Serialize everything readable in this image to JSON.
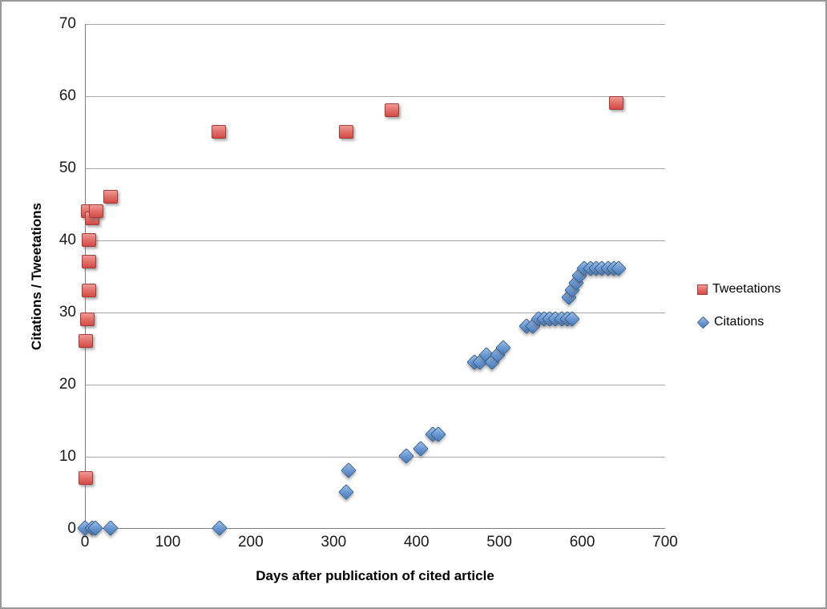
{
  "chart_data": {
    "type": "scatter",
    "title": "",
    "xlabel": "Days after publication of cited article",
    "ylabel": "Citations / Tweetations",
    "xlim": [
      0,
      700
    ],
    "ylim": [
      0,
      70
    ],
    "x_ticks": [
      0,
      100,
      200,
      300,
      400,
      500,
      600,
      700
    ],
    "y_ticks": [
      0,
      10,
      20,
      30,
      40,
      50,
      60,
      70
    ],
    "grid": "horizontal-only",
    "legend_position": "right",
    "series": [
      {
        "name": "Tweetations",
        "marker": "square",
        "color": "#d9534f",
        "border_color": "#a23a37",
        "points": [
          [
            1,
            7
          ],
          [
            1,
            26
          ],
          [
            3,
            29
          ],
          [
            5,
            33
          ],
          [
            5,
            37
          ],
          [
            5,
            40
          ],
          [
            4,
            44
          ],
          [
            9,
            43
          ],
          [
            14,
            44
          ],
          [
            31,
            46
          ],
          [
            161,
            55
          ],
          [
            315,
            55
          ],
          [
            370,
            58
          ],
          [
            641,
            59
          ]
        ]
      },
      {
        "name": "Citations",
        "marker": "diamond",
        "color": "#4f81bd",
        "border_color": "#35618f",
        "points": [
          [
            0,
            0
          ],
          [
            9,
            0
          ],
          [
            13,
            0
          ],
          [
            31,
            0
          ],
          [
            162,
            0
          ],
          [
            315,
            5
          ],
          [
            318,
            8
          ],
          [
            388,
            10
          ],
          [
            405,
            11
          ],
          [
            420,
            13
          ],
          [
            426,
            13
          ],
          [
            470,
            23
          ],
          [
            477,
            23
          ],
          [
            484,
            24
          ],
          [
            491,
            23
          ],
          [
            498,
            24
          ],
          [
            505,
            25
          ],
          [
            533,
            28
          ],
          [
            540,
            28
          ],
          [
            547,
            29
          ],
          [
            554,
            29
          ],
          [
            561,
            29
          ],
          [
            568,
            29
          ],
          [
            575,
            29
          ],
          [
            582,
            29
          ],
          [
            588,
            29
          ],
          [
            584,
            32
          ],
          [
            588,
            33
          ],
          [
            593,
            34
          ],
          [
            597,
            35
          ],
          [
            602,
            36
          ],
          [
            610,
            36
          ],
          [
            617,
            36
          ],
          [
            624,
            36
          ],
          [
            631,
            36
          ],
          [
            638,
            36
          ],
          [
            644,
            36
          ]
        ]
      }
    ]
  },
  "colors": {
    "gridline": "#a6a6a6",
    "axis_line": "#808080",
    "background": "#ffffff",
    "frame_border": "#999999",
    "tweetations_fill": "#d9534f",
    "citations_fill": "#4f81bd"
  }
}
